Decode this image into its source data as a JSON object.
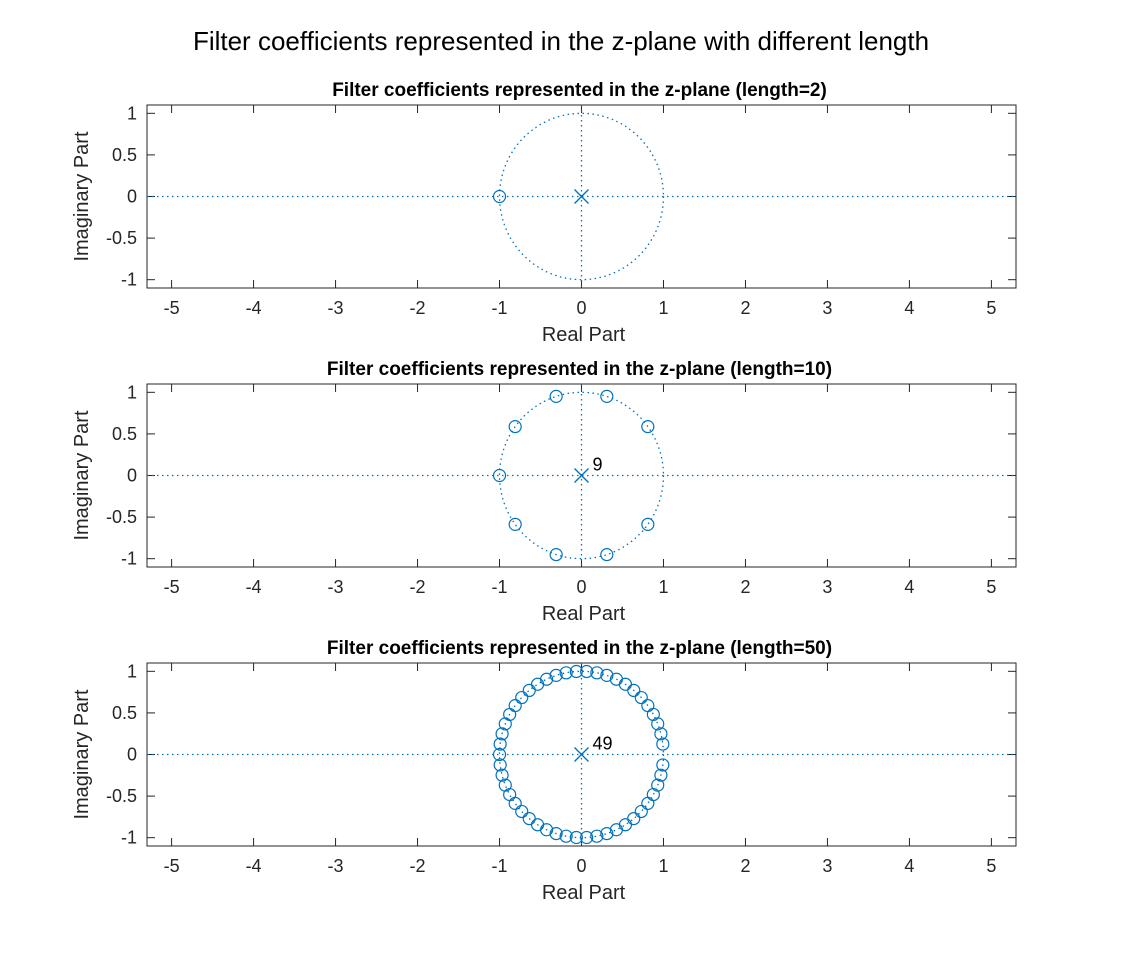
{
  "figure": {
    "suptitle": "Filter coefficients represented in the z-plane with different length"
  },
  "style": {
    "marker_color": "#0072BD",
    "axis_color": "#262626",
    "background": "#ffffff"
  },
  "chart_data": [
    {
      "type": "scatter",
      "title": "Filter coefficients represented in the z-plane (length=2)",
      "xlabel": "Real Part",
      "ylabel": "Imaginary Part",
      "xlim": [
        -5.3,
        5.3
      ],
      "ylim": [
        -1.1,
        1.1
      ],
      "xticks": [
        -5,
        -4,
        -3,
        -2,
        -1,
        0,
        1,
        2,
        3,
        4,
        5
      ],
      "yticks": [
        1,
        0.5,
        0,
        -0.5,
        -1
      ],
      "ytick_labels": [
        "1",
        "0.5",
        "0",
        "-0.5",
        "-1"
      ],
      "unit_circle": true,
      "zeros_count": 1,
      "pole": {
        "x": 0,
        "y": 0,
        "multiplicity_label": ""
      }
    },
    {
      "type": "scatter",
      "title": "Filter coefficients represented in the z-plane (length=10)",
      "xlabel": "Real Part",
      "ylabel": "Imaginary Part",
      "xlim": [
        -5.3,
        5.3
      ],
      "ylim": [
        -1.1,
        1.1
      ],
      "xticks": [
        -5,
        -4,
        -3,
        -2,
        -1,
        0,
        1,
        2,
        3,
        4,
        5
      ],
      "yticks": [
        1,
        0.5,
        0,
        -0.5,
        -1
      ],
      "ytick_labels": [
        "1",
        "0.5",
        "0",
        "-0.5",
        "-1"
      ],
      "unit_circle": true,
      "zeros_count": 9,
      "pole": {
        "x": 0,
        "y": 0,
        "multiplicity_label": "9"
      }
    },
    {
      "type": "scatter",
      "title": "Filter coefficients represented in the z-plane (length=50)",
      "xlabel": "Real Part",
      "ylabel": "Imaginary Part",
      "xlim": [
        -5.3,
        5.3
      ],
      "ylim": [
        -1.1,
        1.1
      ],
      "xticks": [
        -5,
        -4,
        -3,
        -2,
        -1,
        0,
        1,
        2,
        3,
        4,
        5
      ],
      "yticks": [
        1,
        0.5,
        0,
        -0.5,
        -1
      ],
      "ytick_labels": [
        "1",
        "0.5",
        "0",
        "-0.5",
        "-1"
      ],
      "unit_circle": true,
      "zeros_count": 49,
      "pole": {
        "x": 0,
        "y": 0,
        "multiplicity_label": "49"
      }
    }
  ]
}
